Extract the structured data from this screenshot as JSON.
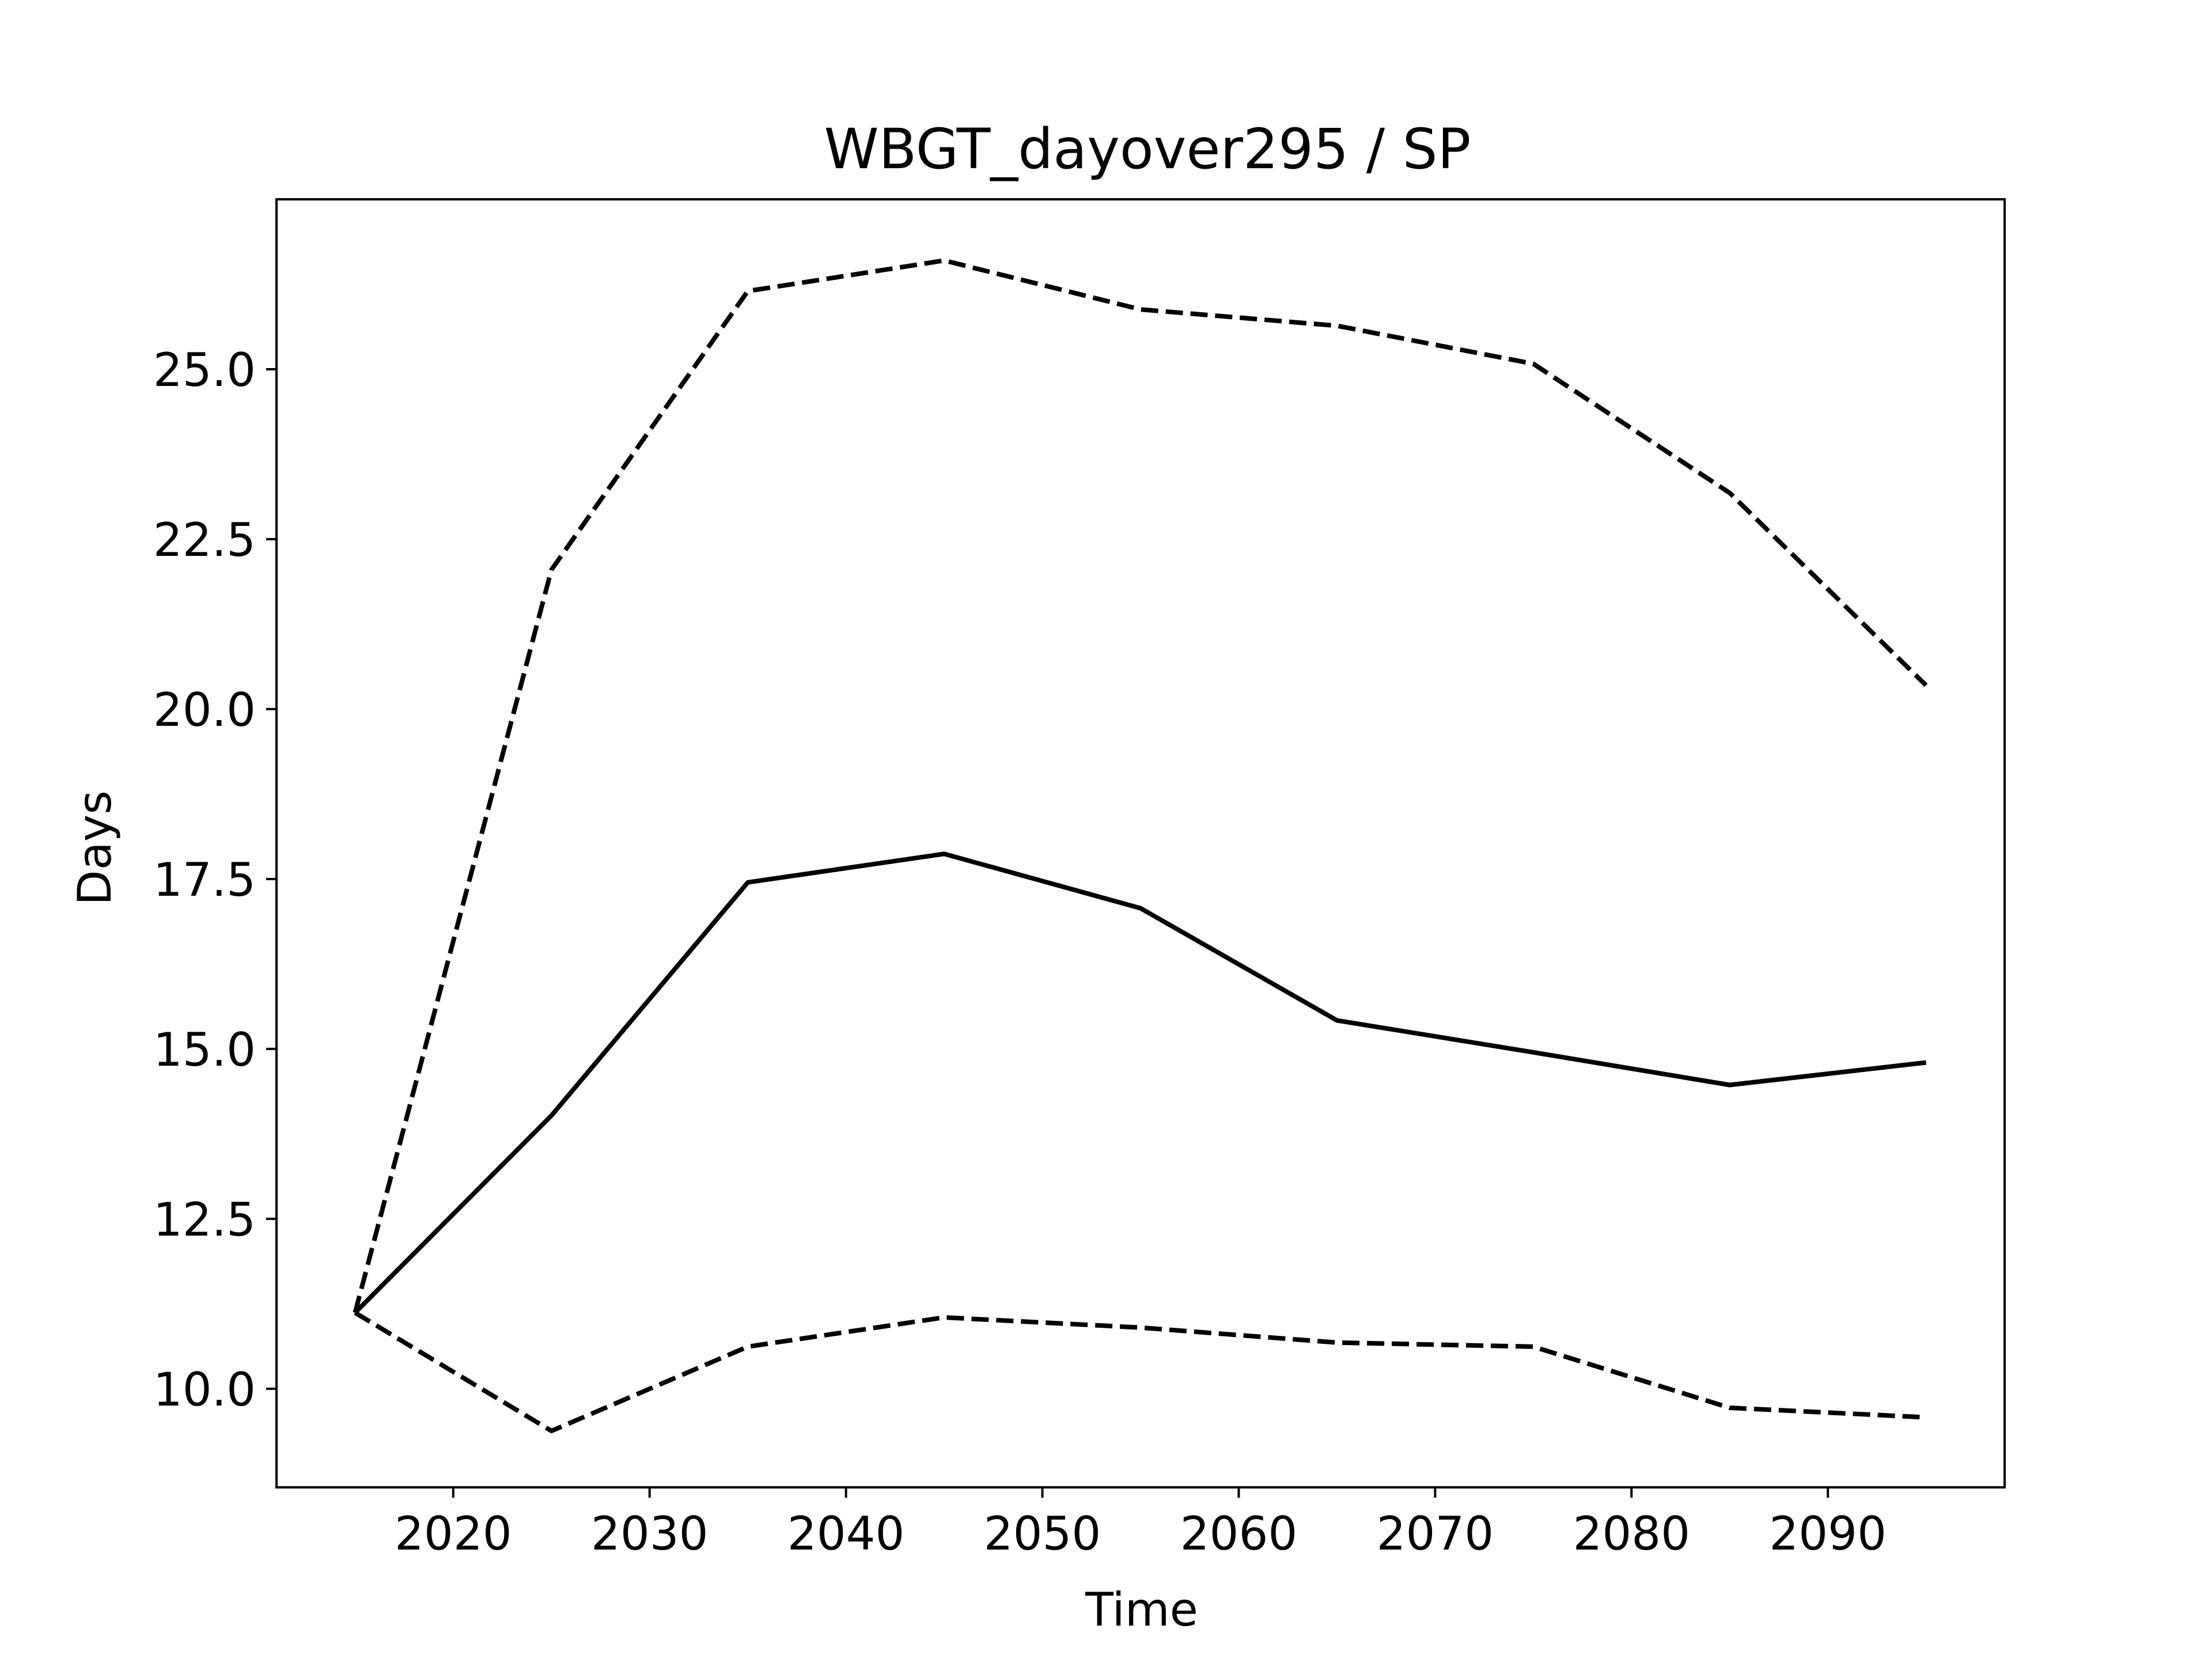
{
  "chart_data": {
    "type": "line",
    "title": "WBGT_dayover295 / SP",
    "xlabel": "Time",
    "ylabel": "Days",
    "x": [
      2015,
      2025,
      2035,
      2045,
      2055,
      2065,
      2075,
      2085,
      2095
    ],
    "xlim": [
      2011,
      2099
    ],
    "ylim": [
      8.55,
      27.5
    ],
    "xticks": [
      2020,
      2030,
      2040,
      2050,
      2060,
      2070,
      2080,
      2090
    ],
    "xtick_labels": [
      "2020",
      "2030",
      "2040",
      "2050",
      "2060",
      "2070",
      "2080",
      "2090"
    ],
    "yticks": [
      10.0,
      12.5,
      15.0,
      17.5,
      20.0,
      22.5,
      25.0
    ],
    "ytick_labels": [
      "10.0",
      "12.5",
      "15.0",
      "17.5",
      "20.0",
      "22.5",
      "25.0"
    ],
    "grid": false,
    "legend": "none",
    "series": [
      {
        "values": [
          11.12,
          22.05,
          26.15,
          26.6,
          25.88,
          25.64,
          25.08,
          23.18,
          20.35
        ],
        "color": "#000000",
        "style": "dashed"
      },
      {
        "values": [
          11.12,
          14.02,
          17.45,
          17.87,
          17.07,
          15.42,
          14.95,
          14.47,
          14.8
        ],
        "color": "#000000",
        "style": "solid"
      },
      {
        "values": [
          11.12,
          9.38,
          10.62,
          11.05,
          10.9,
          10.68,
          10.62,
          9.72,
          9.58
        ],
        "color": "#000000",
        "style": "dashed"
      }
    ]
  }
}
